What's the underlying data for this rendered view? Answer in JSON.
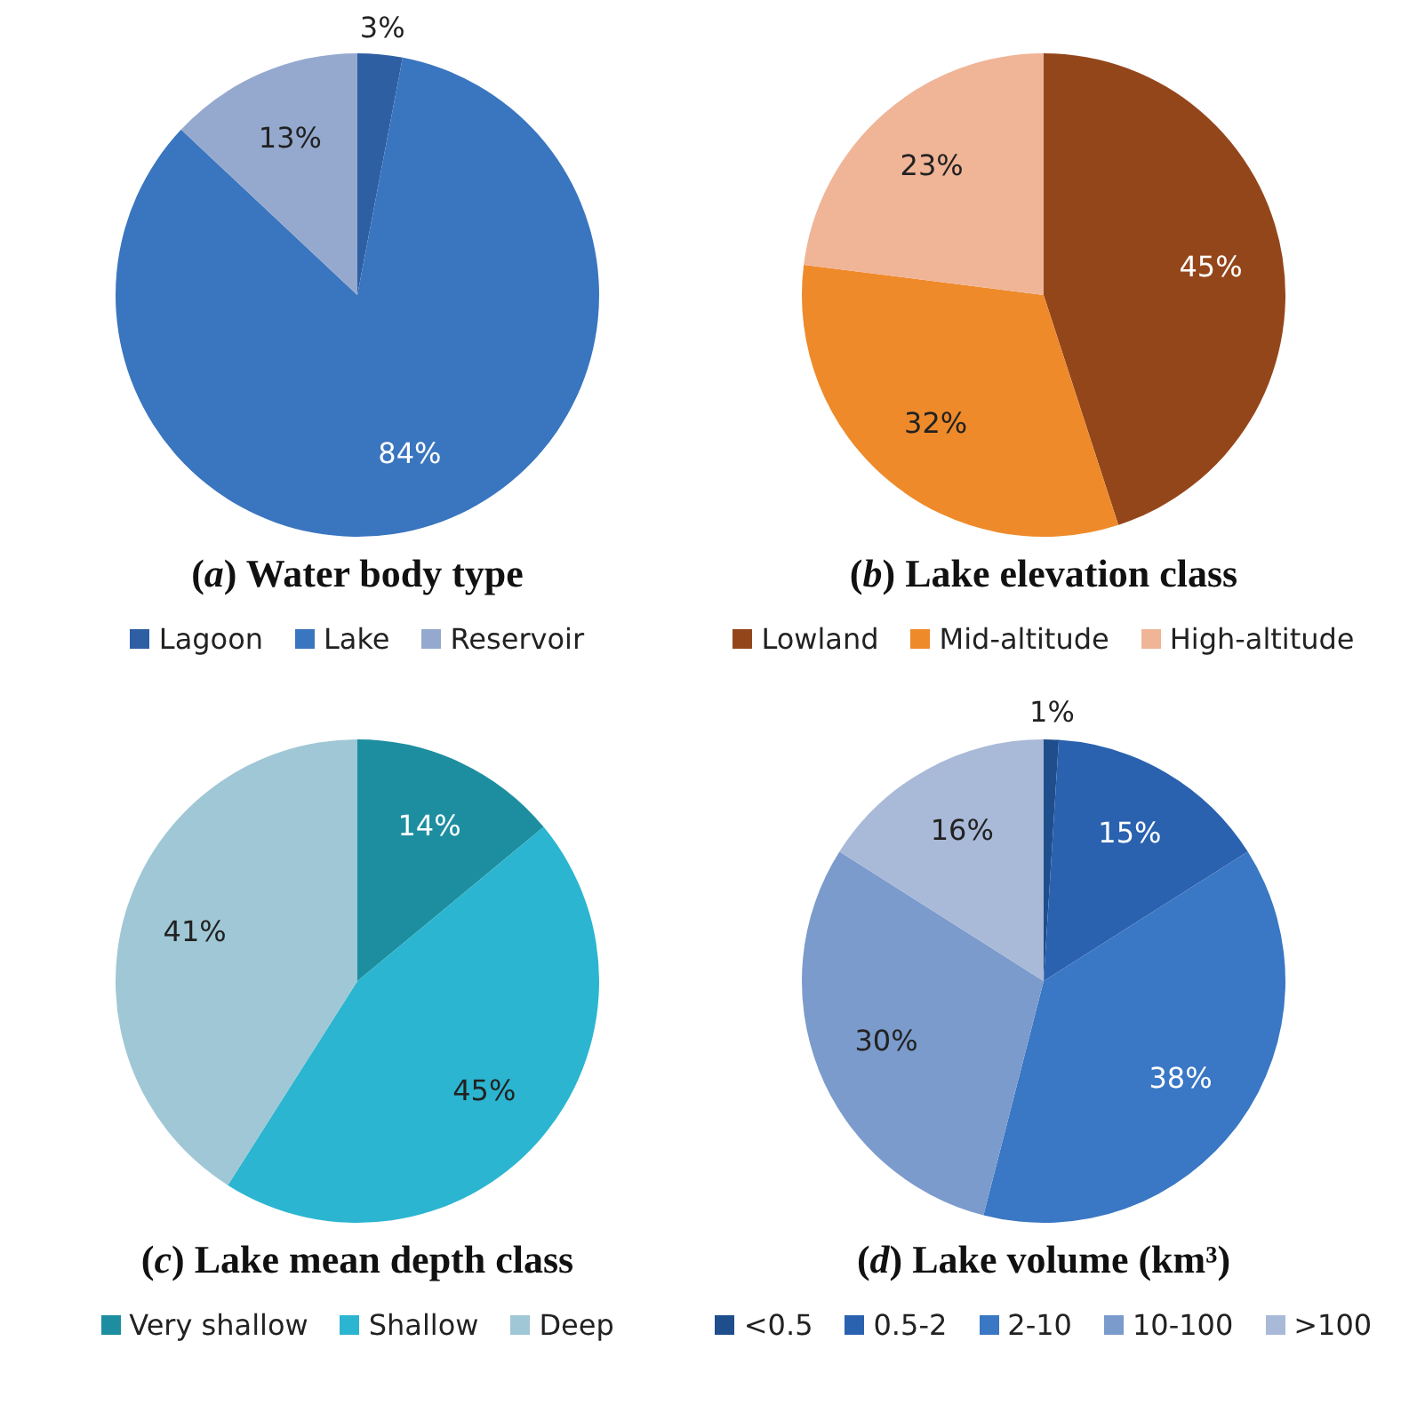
{
  "chart_data": [
    {
      "type": "pie",
      "title": "(a) Water body type",
      "categories": [
        "Lagoon",
        "Lake",
        "Reservoir"
      ],
      "values": [
        3,
        84,
        13
      ],
      "value_labels": [
        "3%",
        "84%",
        "13%"
      ],
      "colors": [
        "#2e5fa3",
        "#3a75bf",
        "#95a9cf"
      ],
      "legend": "bottom"
    },
    {
      "type": "pie",
      "title": "(b) Lake elevation class",
      "categories": [
        "Lowland",
        "Mid-altitude",
        "High-altitude"
      ],
      "values": [
        45,
        32,
        23
      ],
      "value_labels": [
        "45%",
        "32%",
        "23%"
      ],
      "colors": [
        "#94461b",
        "#ee8a2a",
        "#f0b497"
      ],
      "legend": "bottom"
    },
    {
      "type": "pie",
      "title": "(c) Lake mean depth class",
      "categories": [
        "Very shallow",
        "Shallow",
        "Deep"
      ],
      "values": [
        14,
        45,
        41
      ],
      "value_labels": [
        "14%",
        "45%",
        "41%"
      ],
      "colors": [
        "#1d8ea0",
        "#2bb5d0",
        "#9fc7d6"
      ],
      "legend": "bottom"
    },
    {
      "type": "pie",
      "title": "(d) Lake volume (km³)",
      "categories": [
        "<0.5",
        "0.5-2",
        "2-10",
        "10-100",
        ">100"
      ],
      "values": [
        1,
        15,
        38,
        30,
        16
      ],
      "value_labels": [
        "1%",
        "15%",
        "38%",
        "30%",
        "16%"
      ],
      "colors": [
        "#1f4e8c",
        "#2a62b0",
        "#3a77c4",
        "#7b9bcc",
        "#a9b9d8"
      ],
      "legend": "bottom"
    }
  ]
}
